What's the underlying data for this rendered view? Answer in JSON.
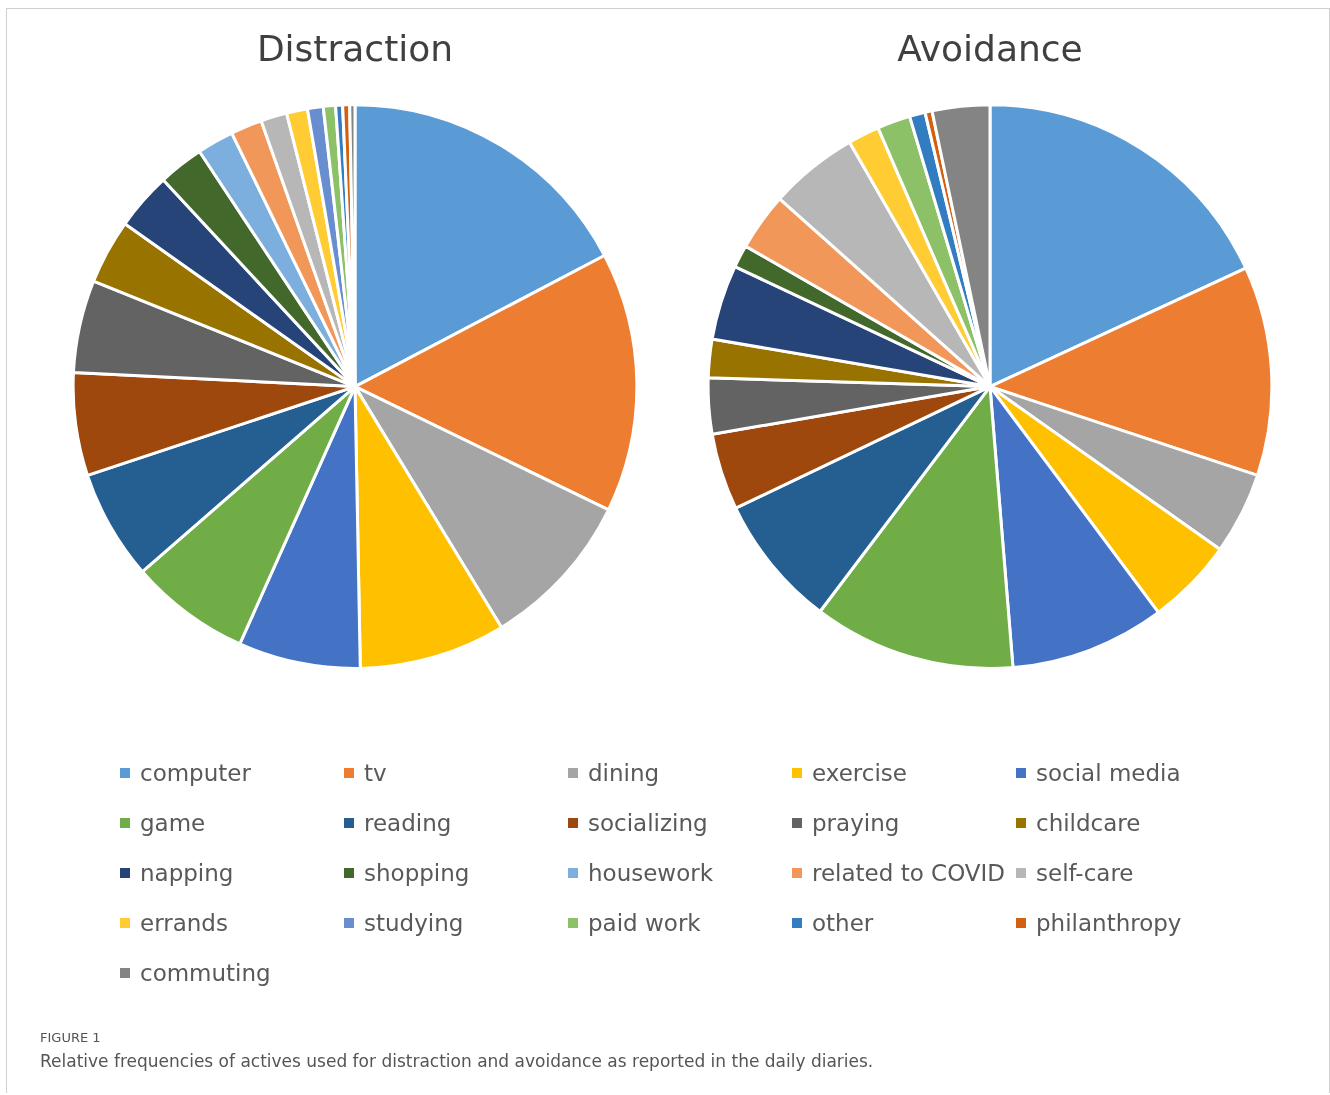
{
  "chart_data": {
    "type": "pie",
    "legend": "bottom",
    "categories": [
      "computer",
      "tv",
      "dining",
      "exercise",
      "social media",
      "game",
      "reading",
      "socializing",
      "praying",
      "childcare",
      "napping",
      "shopping",
      "housework",
      "related to COVID",
      "self-care",
      "errands",
      "studying",
      "paid work",
      "other",
      "philanthropy",
      "commuting"
    ],
    "colors": [
      "#5b9bd5",
      "#ed7d31",
      "#a5a5a5",
      "#ffc000",
      "#4472c4",
      "#70ad47",
      "#255e91",
      "#9e480e",
      "#636363",
      "#997300",
      "#264478",
      "#43682b",
      "#7cafdd",
      "#f1975a",
      "#b7b7b7",
      "#ffcd33",
      "#698ed0",
      "#8cc168",
      "#327dc2",
      "#d26012",
      "#848484"
    ],
    "series": [
      {
        "name": "Distraction",
        "values": [
          17.3,
          14.9,
          9.1,
          8.4,
          7.0,
          6.9,
          6.3,
          5.9,
          5.3,
          3.7,
          3.3,
          2.6,
          2.1,
          1.8,
          1.5,
          1.2,
          0.9,
          0.7,
          0.4,
          0.4,
          0.3
        ]
      },
      {
        "name": "Avoidance",
        "values": [
          18.1,
          12.0,
          4.7,
          5.0,
          8.9,
          11.6,
          7.6,
          4.4,
          3.2,
          2.2,
          4.3,
          1.3,
          0,
          3.3,
          5.1,
          1.8,
          0,
          1.9,
          0.9,
          0.4,
          3.3
        ]
      }
    ],
    "annotations": [
      "FIGURE 1",
      "Relative frequencies of actives used for distraction and avoidance as reported in the daily diaries."
    ]
  }
}
